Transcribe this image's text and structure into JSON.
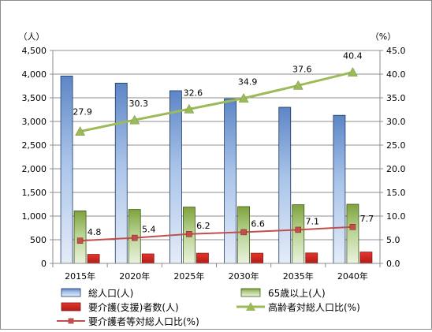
{
  "chart_data": {
    "type": "bar",
    "categories": [
      "2015年",
      "2020年",
      "2025年",
      "2030年",
      "2035年",
      "2040年"
    ],
    "left_axis": {
      "unit_label": "（人）",
      "ylim": [
        0,
        4500
      ],
      "ticks": [
        "0",
        "500",
        "1,000",
        "1,500",
        "2,000",
        "2,500",
        "3,000",
        "3,500",
        "4,000",
        "4,500"
      ],
      "tick_values": [
        0,
        500,
        1000,
        1500,
        2000,
        2500,
        3000,
        3500,
        4000,
        4500
      ]
    },
    "right_axis": {
      "unit_label": "（%）",
      "ylim": [
        0,
        45
      ],
      "ticks": [
        "0.0",
        "5.0",
        "10.0",
        "15.0",
        "20.0",
        "25.0",
        "30.0",
        "35.0",
        "40.0",
        "45.0"
      ],
      "tick_values": [
        0,
        5,
        10,
        15,
        20,
        25,
        30,
        35,
        40,
        45
      ]
    },
    "series": [
      {
        "name": "総人口(人)",
        "kind": "bar",
        "axis": "left",
        "color": "#8db3e2",
        "values": [
          3960,
          3810,
          3650,
          3480,
          3300,
          3130
        ]
      },
      {
        "name": "65歳以上(人)",
        "kind": "bar",
        "axis": "left",
        "color": "#9bbb59",
        "values": [
          1110,
          1140,
          1190,
          1200,
          1240,
          1250
        ]
      },
      {
        "name": "要介護(支援)者数(人)",
        "kind": "bar",
        "axis": "left",
        "color": "#c0504d",
        "values": [
          190,
          200,
          215,
          215,
          220,
          240
        ]
      },
      {
        "name": "高齢者対総人口比(%)",
        "kind": "line",
        "marker": "triangle",
        "axis": "right",
        "color": "#9bbb59",
        "values": [
          27.9,
          30.3,
          32.6,
          34.9,
          37.6,
          40.4
        ],
        "labels": [
          "27.9",
          "30.3",
          "32.6",
          "34.9",
          "37.6",
          "40.4"
        ]
      },
      {
        "name": "要介護者等対総人口比(%)",
        "kind": "line",
        "marker": "square",
        "axis": "right",
        "color": "#c0504d",
        "values": [
          4.8,
          5.4,
          6.2,
          6.6,
          7.1,
          7.7
        ],
        "labels": [
          "4.8",
          "5.4",
          "6.2",
          "6.6",
          "7.1",
          "7.7"
        ]
      }
    ],
    "grid": true,
    "legend_position": "bottom"
  }
}
